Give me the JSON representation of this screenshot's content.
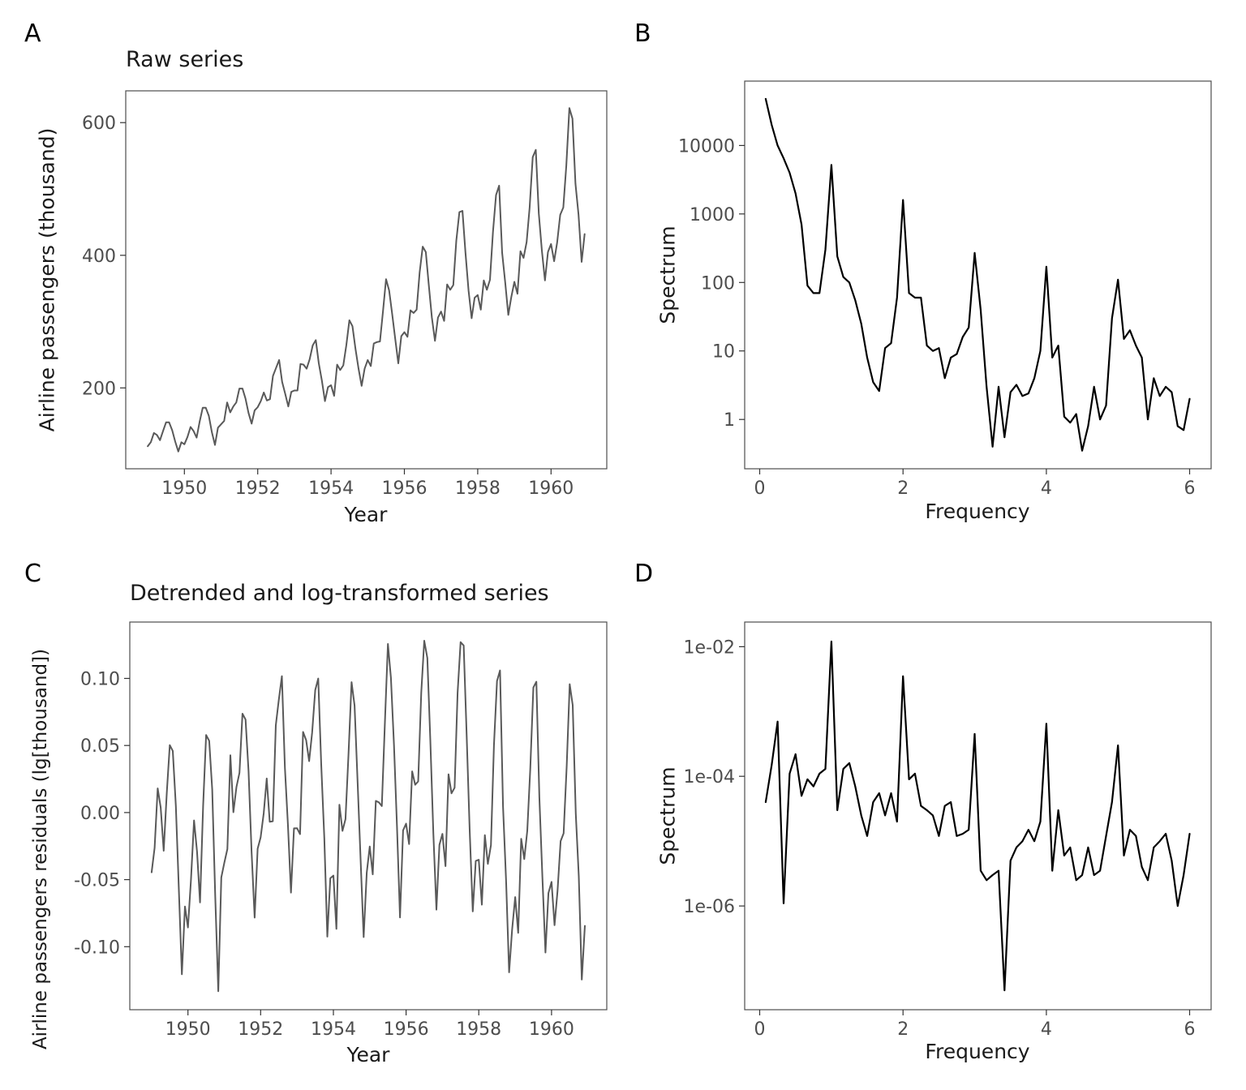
{
  "chart_data": [
    {
      "panel": "A",
      "letter": "A",
      "type": "line",
      "title": "Raw series",
      "xlabel": "Year",
      "ylabel": "Airline passengers (thousand)",
      "x_unit": "year",
      "x_start": 1949,
      "x_step": 0.0833333,
      "xlim": [
        1948.4,
        1961.52
      ],
      "ylim": [
        78,
        648
      ],
      "yscale": "linear",
      "xticks": {
        "values": [
          1950,
          1952,
          1954,
          1956,
          1958,
          1960
        ],
        "labels": [
          "1950",
          "1952",
          "1954",
          "1956",
          "1958",
          "1960"
        ]
      },
      "yticks": {
        "values": [
          200,
          400,
          600
        ],
        "labels": [
          "200",
          "400",
          "600"
        ]
      },
      "line_color": "#595959",
      "line_width": 2,
      "values": [
        112,
        118,
        132,
        129,
        121,
        135,
        148,
        148,
        136,
        119,
        104,
        118,
        115,
        126,
        141,
        135,
        125,
        149,
        170,
        170,
        158,
        133,
        114,
        140,
        145,
        150,
        178,
        163,
        172,
        178,
        199,
        199,
        184,
        162,
        146,
        166,
        171,
        180,
        193,
        181,
        183,
        218,
        230,
        242,
        209,
        191,
        172,
        194,
        196,
        196,
        236,
        235,
        229,
        243,
        264,
        272,
        237,
        211,
        180,
        201,
        204,
        188,
        235,
        227,
        234,
        264,
        302,
        293,
        259,
        229,
        203,
        229,
        242,
        233,
        267,
        269,
        270,
        315,
        364,
        347,
        312,
        274,
        237,
        278,
        284,
        277,
        317,
        313,
        318,
        374,
        413,
        405,
        355,
        306,
        271,
        306,
        315,
        301,
        356,
        348,
        355,
        422,
        465,
        467,
        404,
        347,
        305,
        336,
        340,
        318,
        362,
        348,
        363,
        435,
        491,
        505,
        404,
        359,
        310,
        337,
        360,
        342,
        406,
        396,
        420,
        472,
        548,
        559,
        463,
        407,
        362,
        405,
        417,
        391,
        419,
        461,
        472,
        535,
        622,
        606,
        508,
        461,
        390,
        432
      ]
    },
    {
      "panel": "B",
      "letter": "B",
      "type": "line",
      "title": "",
      "xlabel": "Frequency",
      "ylabel": "Spectrum",
      "x_unit": "cycles per year",
      "x_start": 0.0833333,
      "x_step": 0.0833333,
      "xlim": [
        -0.21,
        6.3
      ],
      "ylim": [
        -0.72,
        4.94
      ],
      "ylim_units": "log10",
      "yscale": "log10",
      "xticks": {
        "values": [
          0,
          2,
          4,
          6
        ],
        "labels": [
          "0",
          "2",
          "4",
          "6"
        ]
      },
      "yticks": {
        "values": [
          1,
          10,
          100,
          1000,
          10000
        ],
        "labels": [
          "1",
          "10",
          "100",
          "1000",
          "10000"
        ]
      },
      "line_color": "#000000",
      "line_width": 2.2,
      "values": [
        48000,
        20000,
        10000,
        6500,
        4000,
        2000,
        700,
        90,
        70,
        70,
        300,
        5200,
        240,
        120,
        100,
        55,
        25,
        8,
        3.5,
        2.6,
        11,
        13,
        60,
        1600,
        70,
        60,
        60,
        12,
        10,
        11,
        4,
        8,
        9,
        16,
        22,
        270,
        40,
        3,
        0.4,
        3,
        0.55,
        2.5,
        3.2,
        2.2,
        2.4,
        4,
        10,
        170,
        8,
        12,
        1.1,
        0.9,
        1.2,
        0.35,
        0.8,
        3,
        1,
        1.6,
        30,
        110,
        15,
        20,
        12,
        8,
        1,
        4,
        2.2,
        3,
        2.5,
        0.8,
        0.7,
        2
      ]
    },
    {
      "panel": "C",
      "letter": "C",
      "type": "line",
      "title": "Detrended and log-transformed series",
      "xlabel": "Year",
      "ylabel": "Airline passengers residuals (lg[thousand])",
      "x_unit": "year",
      "x_start": 1949,
      "x_step": 0.0833333,
      "xlim": [
        1948.4,
        1961.52
      ],
      "ylim": [
        -0.147,
        0.142
      ],
      "yscale": "linear",
      "xticks": {
        "values": [
          1950,
          1952,
          1954,
          1956,
          1958,
          1960
        ],
        "labels": [
          "1950",
          "1952",
          "1954",
          "1956",
          "1958",
          "1960"
        ]
      },
      "yticks": {
        "values": [
          -0.1,
          -0.05,
          0.0,
          0.05,
          0.1
        ],
        "labels": [
          "-0.10",
          "-0.05",
          "0.00",
          "0.05",
          "0.10"
        ]
      },
      "line_color": "#595959",
      "line_width": 2,
      "values": [
        -0.0446,
        -0.0263,
        0.018,
        0.0037,
        -0.0285,
        0.0146,
        0.0502,
        0.0459,
        0.0047,
        -0.0577,
        -0.1206,
        -0.0701,
        -0.0857,
        -0.0503,
        -0.0059,
        -0.0292,
        -0.067,
        0.005,
        0.0578,
        0.0534,
        0.0173,
        -0.0619,
        -0.1332,
        -0.0484,
        -0.0375,
        -0.0272,
        0.0427,
        0.0002,
        0.0191,
        0.0296,
        0.0737,
        0.0693,
        0.0309,
        -0.0288,
        -0.0783,
        -0.027,
        -0.0185,
        -0.0005,
        0.0254,
        -0.0069,
        -0.0065,
        0.0651,
        0.084,
        0.1017,
        0.0336,
        -0.0099,
        -0.0597,
        -0.0118,
        -0.0117,
        -0.0161,
        0.0601,
        0.054,
        0.0383,
        0.0597,
        0.0913,
        0.0999,
        0.0357,
        -0.0191,
        -0.0925,
        -0.049,
        -0.047,
        -0.0867,
        0.0058,
        -0.0137,
        -0.0049,
        0.0432,
        0.0972,
        0.0797,
        0.0217,
        -0.0362,
        -0.0928,
        -0.0449,
        -0.0253,
        -0.0461,
        0.0087,
        0.0076,
        0.0048,
        0.0673,
        0.1257,
        0.1005,
        0.0501,
        -0.0107,
        -0.0782,
        -0.0133,
        -0.0083,
        -0.0235,
        0.0307,
        0.0207,
        0.0232,
        0.0894,
        0.1281,
        0.1152,
        0.0535,
        -0.0154,
        -0.0724,
        -0.0241,
        -0.0159,
        -0.04,
        0.0285,
        0.0143,
        0.0185,
        0.0892,
        0.127,
        0.1245,
        0.0572,
        -0.0133,
        -0.0737,
        -0.0361,
        -0.0352,
        -0.0687,
        -0.0168,
        -0.0383,
        -0.0244,
        0.0499,
        0.0981,
        0.1059,
        0.0046,
        -0.0511,
        -0.1191,
        -0.0873,
        -0.063,
        -0.0897,
        -0.0196,
        -0.0347,
        -0.0136,
        0.0327,
        0.0932,
        0.0975,
        0.0113,
        -0.0491,
        -0.1044,
        -0.06,
        -0.0517,
        -0.084,
        -0.0584,
        -0.0213,
        -0.0155,
        0.0347,
        0.0957,
        0.08,
        -0.001,
        -0.0476,
        -0.1245,
        -0.0845
      ]
    },
    {
      "panel": "D",
      "letter": "D",
      "type": "line",
      "title": "",
      "xlabel": "Frequency",
      "ylabel": "Spectrum",
      "x_unit": "cycles per year",
      "x_start": 0.0833333,
      "x_step": 0.0833333,
      "xlim": [
        -0.21,
        6.3
      ],
      "ylim": [
        -7.6,
        -1.62
      ],
      "ylim_units": "log10",
      "yscale": "log10",
      "xticks": {
        "values": [
          0,
          2,
          4,
          6
        ],
        "labels": [
          "0",
          "2",
          "4",
          "6"
        ]
      },
      "yticks": {
        "values": [
          0.01,
          0.0001,
          1e-06
        ],
        "labels": [
          "1e-02",
          "1e-04",
          "1e-06"
        ]
      },
      "line_color": "#000000",
      "line_width": 2.2,
      "values": [
        4e-05,
        0.00015,
        0.0007,
        1.1e-06,
        0.00011,
        0.00022,
        5e-05,
        9e-05,
        7e-05,
        0.00011,
        0.00013,
        0.012,
        3e-05,
        0.00013,
        0.00016,
        7e-05,
        2.5e-05,
        1.2e-05,
        4e-05,
        5.5e-05,
        2.5e-05,
        5.5e-05,
        2e-05,
        0.0035,
        9e-05,
        0.00011,
        3.5e-05,
        3e-05,
        2.5e-05,
        1.2e-05,
        3.5e-05,
        4e-05,
        1.2e-05,
        1.3e-05,
        1.5e-05,
        0.00045,
        3.5e-06,
        2.5e-06,
        3e-06,
        3.5e-06,
        5e-08,
        5e-06,
        8e-06,
        1e-05,
        1.5e-05,
        1e-05,
        2e-05,
        0.00065,
        3.5e-06,
        3e-05,
        6e-06,
        8e-06,
        2.5e-06,
        3e-06,
        8e-06,
        3e-06,
        3.5e-06,
        1.2e-05,
        4e-05,
        0.0003,
        6e-06,
        1.5e-05,
        1.2e-05,
        4e-06,
        2.5e-06,
        8e-06,
        1e-05,
        1.3e-05,
        5e-06,
        1e-06,
        3e-06,
        1.3e-05
      ]
    }
  ]
}
